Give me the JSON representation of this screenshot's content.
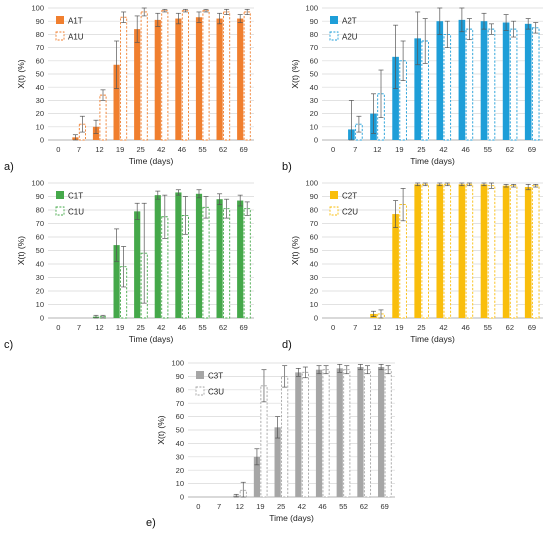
{
  "chart_data": [
    {
      "type": "bar",
      "panel_label": "a)",
      "xlabel": "Time (days)",
      "ylabel": "X(t) (%)",
      "ylim": [
        0,
        100
      ],
      "yticks": [
        0,
        10,
        20,
        30,
        40,
        50,
        60,
        70,
        80,
        90,
        100
      ],
      "categories": [
        "0",
        "7",
        "12",
        "19",
        "25",
        "42",
        "46",
        "55",
        "62",
        "69"
      ],
      "legend_position": "top-left",
      "color": "#F07F2F",
      "series": [
        {
          "name": "A1T",
          "style": "solid",
          "values": [
            0,
            2,
            10,
            57,
            84,
            91,
            92,
            93,
            92,
            92
          ],
          "errors": [
            0,
            2,
            5,
            18,
            10,
            5,
            4,
            4,
            4,
            3
          ]
        },
        {
          "name": "A1U",
          "style": "dashed",
          "values": [
            0,
            12,
            34,
            93,
            97,
            98,
            98,
            98,
            97,
            97
          ],
          "errors": [
            0,
            6,
            4,
            4,
            3,
            1,
            1,
            1,
            2,
            2
          ]
        }
      ]
    },
    {
      "type": "bar",
      "panel_label": "b)",
      "xlabel": "Time (days)",
      "ylabel": "X(t) (%)",
      "ylim": [
        0,
        100
      ],
      "yticks": [
        0,
        10,
        20,
        30,
        40,
        50,
        60,
        70,
        80,
        90,
        100
      ],
      "categories": [
        "0",
        "7",
        "12",
        "19",
        "25",
        "42",
        "46",
        "55",
        "62",
        "69"
      ],
      "legend_position": "top-left",
      "color": "#1E9ED8",
      "series": [
        {
          "name": "A2T",
          "style": "solid",
          "values": [
            0,
            8,
            20,
            63,
            77,
            90,
            91,
            90,
            89,
            88
          ],
          "errors": [
            0,
            22,
            15,
            24,
            20,
            10,
            9,
            6,
            6,
            4
          ]
        },
        {
          "name": "A2U",
          "style": "dashed",
          "values": [
            0,
            12,
            35,
            60,
            75,
            80,
            84,
            84,
            84,
            85
          ],
          "errors": [
            0,
            6,
            18,
            15,
            17,
            10,
            8,
            4,
            6,
            4
          ]
        }
      ]
    },
    {
      "type": "bar",
      "panel_label": "c)",
      "xlabel": "Time (days)",
      "ylabel": "X(t) (%)",
      "ylim": [
        0,
        100
      ],
      "yticks": [
        0,
        10,
        20,
        30,
        40,
        50,
        60,
        70,
        80,
        90,
        100
      ],
      "categories": [
        "0",
        "7",
        "12",
        "19",
        "25",
        "42",
        "46",
        "55",
        "62",
        "69"
      ],
      "legend_position": "top-left",
      "color": "#45A84A",
      "series": [
        {
          "name": "C1T",
          "style": "solid",
          "values": [
            0,
            0,
            1,
            54,
            79,
            91,
            93,
            92,
            88,
            87
          ],
          "errors": [
            0,
            0,
            1,
            12,
            6,
            3,
            2,
            3,
            4,
            4
          ]
        },
        {
          "name": "C1U",
          "style": "dashed",
          "values": [
            0,
            0,
            1,
            38,
            48,
            75,
            76,
            82,
            81,
            81
          ],
          "errors": [
            0,
            0,
            1,
            15,
            37,
            16,
            14,
            8,
            7,
            5
          ]
        }
      ]
    },
    {
      "type": "bar",
      "panel_label": "d)",
      "xlabel": "Time (days)",
      "ylabel": "X(t) (%)",
      "ylim": [
        0,
        100
      ],
      "yticks": [
        0,
        10,
        20,
        30,
        40,
        50,
        60,
        70,
        80,
        90,
        100
      ],
      "categories": [
        "0",
        "7",
        "12",
        "19",
        "25",
        "42",
        "46",
        "55",
        "62",
        "69"
      ],
      "legend_position": "top-left",
      "color": "#F9BE0C",
      "series": [
        {
          "name": "C2T",
          "style": "solid",
          "values": [
            0,
            0,
            3,
            77,
            99,
            99,
            99,
            99,
            98,
            97
          ],
          "errors": [
            0,
            0,
            2,
            10,
            1,
            1,
            1,
            1,
            1,
            2
          ]
        },
        {
          "name": "C2U",
          "style": "dashed",
          "values": [
            0,
            0,
            3,
            84,
            99,
            99,
            99,
            98,
            98,
            98
          ],
          "errors": [
            0,
            0,
            3,
            12,
            1,
            1,
            1,
            2,
            1,
            1
          ]
        }
      ]
    },
    {
      "type": "bar",
      "panel_label": "e)",
      "xlabel": "Time (days)",
      "ylabel": "X(t) (%)",
      "ylim": [
        0,
        100
      ],
      "yticks": [
        0,
        10,
        20,
        30,
        40,
        50,
        60,
        70,
        80,
        90,
        100
      ],
      "categories": [
        "0",
        "7",
        "12",
        "19",
        "25",
        "42",
        "46",
        "55",
        "62",
        "69"
      ],
      "legend_position": "top-left",
      "color": "#A6A6A6",
      "series": [
        {
          "name": "C3T",
          "style": "solid",
          "values": [
            0,
            0,
            1,
            30,
            52,
            93,
            95,
            96,
            97,
            97
          ],
          "errors": [
            0,
            0,
            1,
            6,
            8,
            3,
            3,
            3,
            2,
            2
          ]
        },
        {
          "name": "C3U",
          "style": "dashed",
          "values": [
            0,
            0,
            5,
            83,
            90,
            93,
            95,
            95,
            95,
            95
          ],
          "errors": [
            0,
            0,
            6,
            12,
            8,
            4,
            3,
            3,
            3,
            3
          ]
        }
      ]
    }
  ]
}
